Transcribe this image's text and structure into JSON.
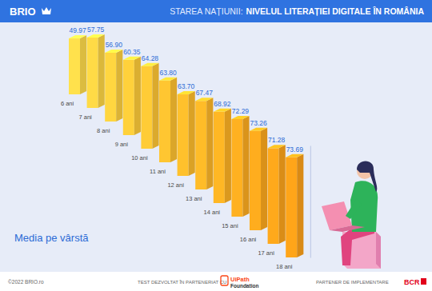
{
  "header": {
    "brand": "BRIO",
    "kicker": "STAREA NAȚIUNII:",
    "title": "NIVELUL LITERAȚIEI DIGITALE ÎN ROMÂNIA"
  },
  "chart_data": {
    "type": "bar",
    "categories": [
      "6 ani",
      "7 ani",
      "8 ani",
      "9 ani",
      "10 ani",
      "11 ani",
      "12 ani",
      "13 ani",
      "14 ani",
      "15 ani",
      "16 ani",
      "17 ani",
      "18 ani"
    ],
    "values": [
      49.97,
      57.75,
      56.9,
      60.35,
      64.28,
      63.8,
      63.7,
      67.47,
      68.92,
      72.29,
      73.26,
      71.28,
      73.69
    ],
    "value_labels": [
      "49.97",
      "57.75",
      "56.90",
      "60.35",
      "64.28",
      "63.80",
      "63.70",
      "67.47",
      "68.92",
      "72.29",
      "73.26",
      "71.28",
      "73.69"
    ],
    "colors": [
      "#f8d548",
      "#f8d042",
      "#f8cb3d",
      "#f8c638",
      "#f8c133",
      "#f8bc2e",
      "#f8b72a",
      "#f8b226",
      "#f8ad22",
      "#f7a81f",
      "#f7a41c",
      "#f7a01a",
      "#f69c18"
    ],
    "ylim": [
      20,
      80
    ],
    "yticks": [],
    "tick_labels": "x",
    "data_labels": true,
    "grid": false,
    "annotation": "Media pe vârstă"
  },
  "footer": {
    "copyright": "©2022  BRIO.ro",
    "partner_text": "TEST DEZVOLTAT ÎN PARTENERIAT CU",
    "partner_name": "UiPath",
    "partner_sub": "Foundation",
    "implementation_text": "PARTENER DE IMPLEMENTARE",
    "implementation_name": "BCR"
  }
}
